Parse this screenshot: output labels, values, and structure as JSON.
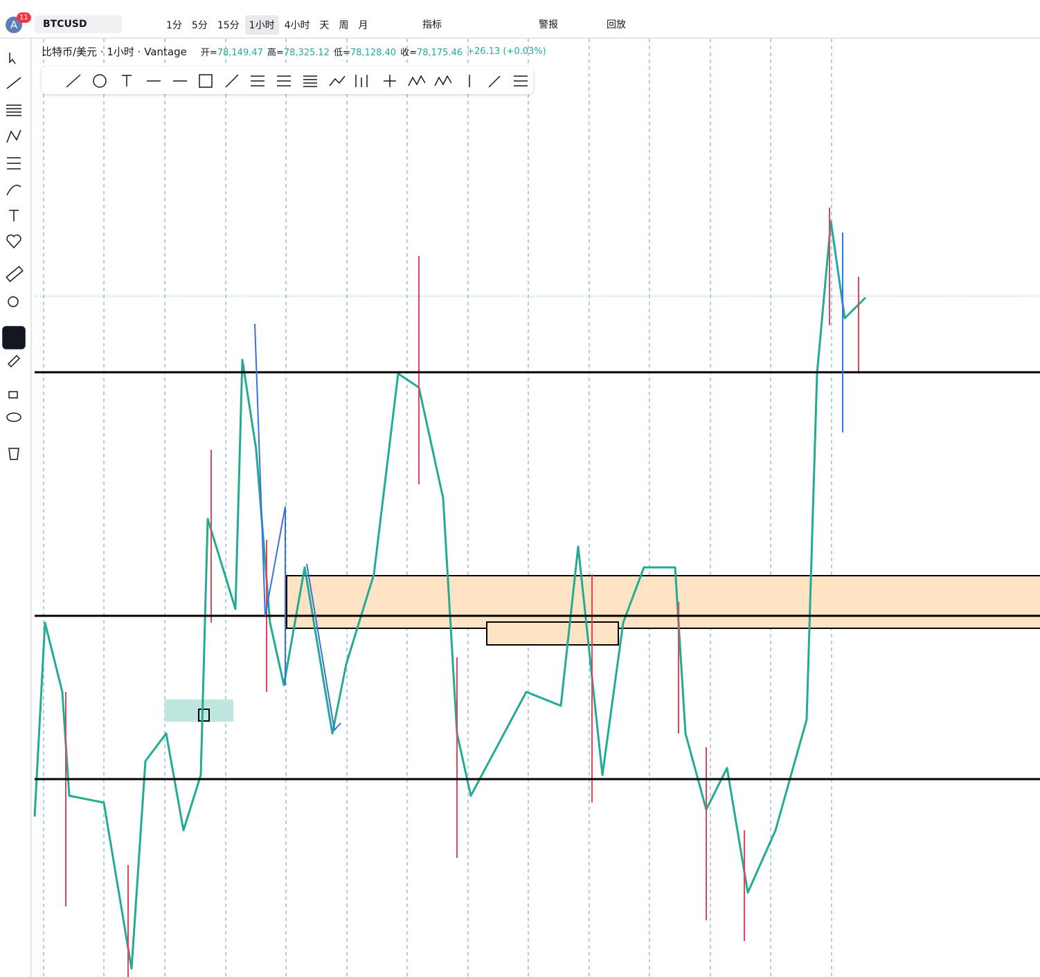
{
  "header": {
    "avatar": "A",
    "badge": "11",
    "symbol": "BTCUSD",
    "timeframes": [
      "1分",
      "5分",
      "15分",
      "1小时",
      "4小时",
      "天",
      "周",
      "月"
    ],
    "active_timeframe": 3,
    "indicators": "指标",
    "alerts": "警报",
    "replay": "回放"
  },
  "legend": {
    "title": "比特币/美元 · 1小时 · Vantage",
    "ohlc": [
      {
        "label": "开=",
        "value": "78,149.47"
      },
      {
        "label": "高=",
        "value": "78,325.12"
      },
      {
        "label": "低=",
        "value": "78,128.40"
      },
      {
        "label": "收=",
        "value": "78,175.46"
      }
    ],
    "change": "+26.13 (+0.03%)"
  }
}
